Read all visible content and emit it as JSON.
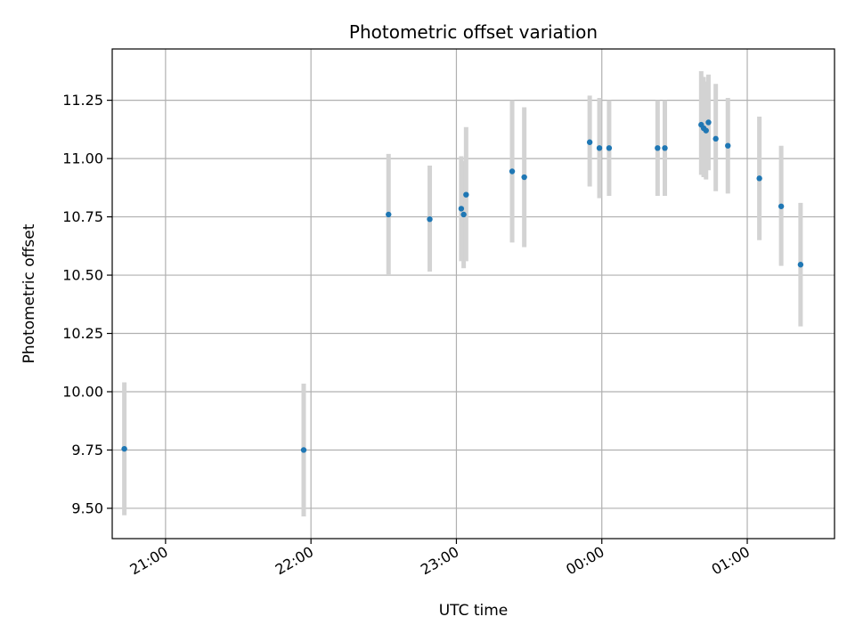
{
  "chart_data": {
    "type": "scatter",
    "title": "Photometric offset variation",
    "xlabel": "UTC time",
    "ylabel": "Photometric offset",
    "x_axis_kind": "time",
    "xlim": [
      "20:38",
      "01:36"
    ],
    "ylim": [
      9.37,
      11.47
    ],
    "x_ticks": [
      "21:00",
      "22:00",
      "23:00",
      "00:00",
      "01:00"
    ],
    "y_ticks": [
      9.5,
      9.75,
      10.0,
      10.25,
      10.5,
      10.75,
      11.0,
      11.25
    ],
    "y_tick_labels": [
      "9.50",
      "9.75",
      "10.00",
      "10.25",
      "10.50",
      "10.75",
      "11.00",
      "11.25"
    ],
    "grid": true,
    "legend": "none",
    "colors": {
      "point": "#1f77b4",
      "error_bar": "#d3d3d3",
      "grid": "#b0b0b0",
      "axes": "#000000"
    },
    "points": [
      {
        "x": "20:43",
        "y": 9.755,
        "yerr_low": 9.47,
        "yerr_high": 10.04
      },
      {
        "x": "21:57",
        "y": 9.75,
        "yerr_low": 9.465,
        "yerr_high": 10.035
      },
      {
        "x": "22:32",
        "y": 10.76,
        "yerr_low": 10.5,
        "yerr_high": 11.02
      },
      {
        "x": "22:49",
        "y": 10.74,
        "yerr_low": 10.515,
        "yerr_high": 10.97
      },
      {
        "x": "23:02",
        "y": 10.785,
        "yerr_low": 10.56,
        "yerr_high": 11.01
      },
      {
        "x": "23:03",
        "y": 10.76,
        "yerr_low": 10.53,
        "yerr_high": 10.99
      },
      {
        "x": "23:04",
        "y": 10.845,
        "yerr_low": 10.56,
        "yerr_high": 11.135
      },
      {
        "x": "23:23",
        "y": 10.945,
        "yerr_low": 10.64,
        "yerr_high": 11.25
      },
      {
        "x": "23:28",
        "y": 10.92,
        "yerr_low": 10.62,
        "yerr_high": 11.22
      },
      {
        "x": "23:55",
        "y": 11.07,
        "yerr_low": 10.88,
        "yerr_high": 11.27
      },
      {
        "x": "23:59",
        "y": 11.045,
        "yerr_low": 10.83,
        "yerr_high": 11.26
      },
      {
        "x": "00:03",
        "y": 11.045,
        "yerr_low": 10.84,
        "yerr_high": 11.25
      },
      {
        "x": "00:23",
        "y": 11.045,
        "yerr_low": 10.84,
        "yerr_high": 11.25
      },
      {
        "x": "00:26",
        "y": 11.045,
        "yerr_low": 10.84,
        "yerr_high": 11.25
      },
      {
        "x": "00:41",
        "y": 11.145,
        "yerr_low": 10.93,
        "yerr_high": 11.375
      },
      {
        "x": "00:42",
        "y": 11.13,
        "yerr_low": 10.92,
        "yerr_high": 11.35
      },
      {
        "x": "00:43",
        "y": 11.12,
        "yerr_low": 10.91,
        "yerr_high": 11.33
      },
      {
        "x": "00:44",
        "y": 11.155,
        "yerr_low": 10.95,
        "yerr_high": 11.36
      },
      {
        "x": "00:47",
        "y": 11.085,
        "yerr_low": 10.86,
        "yerr_high": 11.32
      },
      {
        "x": "00:52",
        "y": 11.055,
        "yerr_low": 10.85,
        "yerr_high": 11.26
      },
      {
        "x": "01:05",
        "y": 10.915,
        "yerr_low": 10.65,
        "yerr_high": 11.18
      },
      {
        "x": "01:14",
        "y": 10.795,
        "yerr_low": 10.54,
        "yerr_high": 11.055
      },
      {
        "x": "01:22",
        "y": 10.545,
        "yerr_low": 10.28,
        "yerr_high": 10.81
      }
    ]
  }
}
